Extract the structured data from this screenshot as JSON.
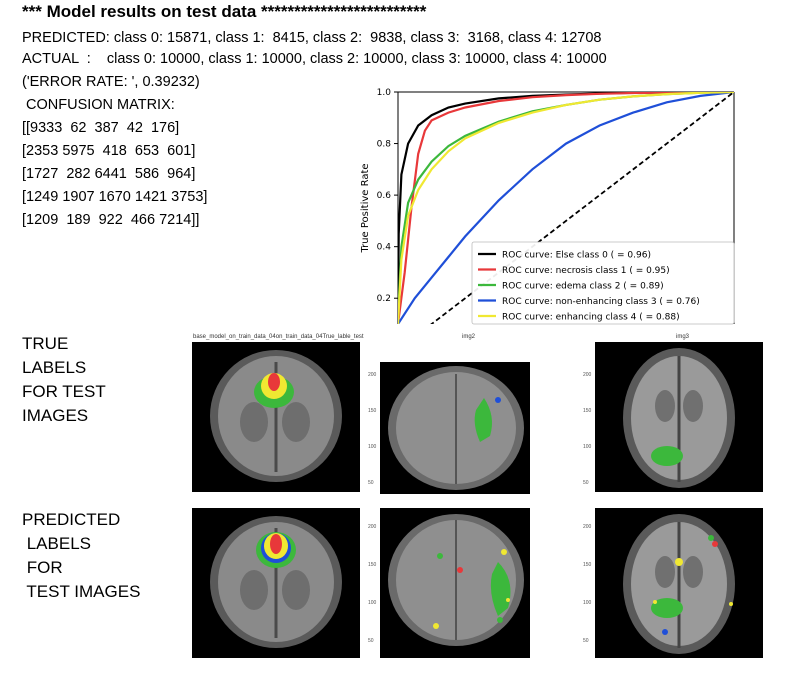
{
  "header": {
    "title": "*** Model results on test data *************************",
    "predicted": "PREDICTED: class 0: 15871, class 1:  8415, class 2:  9838, class 3:  3168, class 4: 12708",
    "actual": "ACTUAL  :    class 0: 10000, class 1: 10000, class 2: 10000, class 3: 10000, class 4: 10000",
    "error_rate": "('ERROR RATE: ', 0.39232)",
    "confusion_title": " CONFUSION MATRIX:"
  },
  "confusion_matrix": [
    "[[9333  62  387  42  176]",
    "[2353 5975  418  653  601]",
    "[1727  282 6441  586  964]",
    "[1249 1907 1670 1421 3753]",
    "[1209  189  922  466 7214]]"
  ],
  "chart_data": {
    "type": "line",
    "ylabel": "True Positive Rate",
    "xlabel": "",
    "ylim": [
      0.1,
      1.0
    ],
    "xlim": [
      0,
      1
    ],
    "yticks": [
      "1.0",
      "0.8",
      "0.6",
      "0.4",
      "0.2"
    ],
    "legend_position": "bottom-right",
    "series": [
      {
        "name": "ROC curve: Else class 0 ( = 0.96)",
        "color": "#000000",
        "x": [
          0,
          0.002,
          0.01,
          0.03,
          0.06,
          0.1,
          0.15,
          0.2,
          0.3,
          0.4,
          0.5,
          0.6,
          0.7,
          0.8,
          0.9,
          1.0
        ],
        "y": [
          0.12,
          0.45,
          0.68,
          0.8,
          0.87,
          0.91,
          0.94,
          0.955,
          0.975,
          0.985,
          0.99,
          0.994,
          0.997,
          0.998,
          0.999,
          1.0
        ]
      },
      {
        "name": "ROC curve: necrosis class 1 ( = 0.95)",
        "color": "#e8383a",
        "x": [
          0,
          0.02,
          0.04,
          0.06,
          0.08,
          0.1,
          0.15,
          0.2,
          0.3,
          0.4,
          0.5,
          0.6,
          0.7,
          0.8,
          0.9,
          1.0
        ],
        "y": [
          0.1,
          0.3,
          0.55,
          0.76,
          0.85,
          0.89,
          0.92,
          0.94,
          0.965,
          0.98,
          0.988,
          0.993,
          0.996,
          0.998,
          0.999,
          1.0
        ]
      },
      {
        "name": "ROC curve: edema class 2 ( = 0.89)",
        "color": "#3cb83c",
        "x": [
          0,
          0.01,
          0.03,
          0.06,
          0.1,
          0.15,
          0.2,
          0.3,
          0.4,
          0.5,
          0.6,
          0.7,
          0.8,
          0.9,
          1.0
        ],
        "y": [
          0.12,
          0.4,
          0.57,
          0.66,
          0.73,
          0.79,
          0.83,
          0.885,
          0.925,
          0.95,
          0.97,
          0.983,
          0.992,
          0.997,
          1.0
        ]
      },
      {
        "name": "ROC curve: non-enhancing class 3 ( = 0.76)",
        "color": "#1f4fd8",
        "x": [
          0,
          0.05,
          0.1,
          0.15,
          0.2,
          0.3,
          0.4,
          0.5,
          0.6,
          0.7,
          0.8,
          0.9,
          1.0
        ],
        "y": [
          0.1,
          0.2,
          0.28,
          0.36,
          0.44,
          0.58,
          0.7,
          0.8,
          0.87,
          0.92,
          0.96,
          0.985,
          1.0
        ]
      },
      {
        "name": "ROC curve: enhancing class 4 ( = 0.88)",
        "color": "#f0e832",
        "x": [
          0,
          0.01,
          0.03,
          0.06,
          0.1,
          0.15,
          0.2,
          0.3,
          0.4,
          0.5,
          0.6,
          0.7,
          0.8,
          0.9,
          1.0
        ],
        "y": [
          0.1,
          0.35,
          0.52,
          0.62,
          0.7,
          0.77,
          0.82,
          0.88,
          0.92,
          0.95,
          0.97,
          0.983,
          0.992,
          0.997,
          1.0
        ]
      },
      {
        "name": "",
        "color": "#000000",
        "dashed": true,
        "x": [
          0,
          1
        ],
        "y": [
          0,
          1
        ]
      }
    ]
  },
  "section_true": {
    "label": "TRUE\nLABELS\nFOR TEST\nIMAGES"
  },
  "section_pred": {
    "label": "PREDICTED\n LABELS\n FOR\n TEST IMAGES"
  },
  "captions": {
    "img1": "base_model_on_train_data_04on_train_data_04True_lable_test",
    "img2": "img2",
    "img3": "img3"
  },
  "image_ticks": [
    "200",
    "150",
    "100",
    "50"
  ]
}
